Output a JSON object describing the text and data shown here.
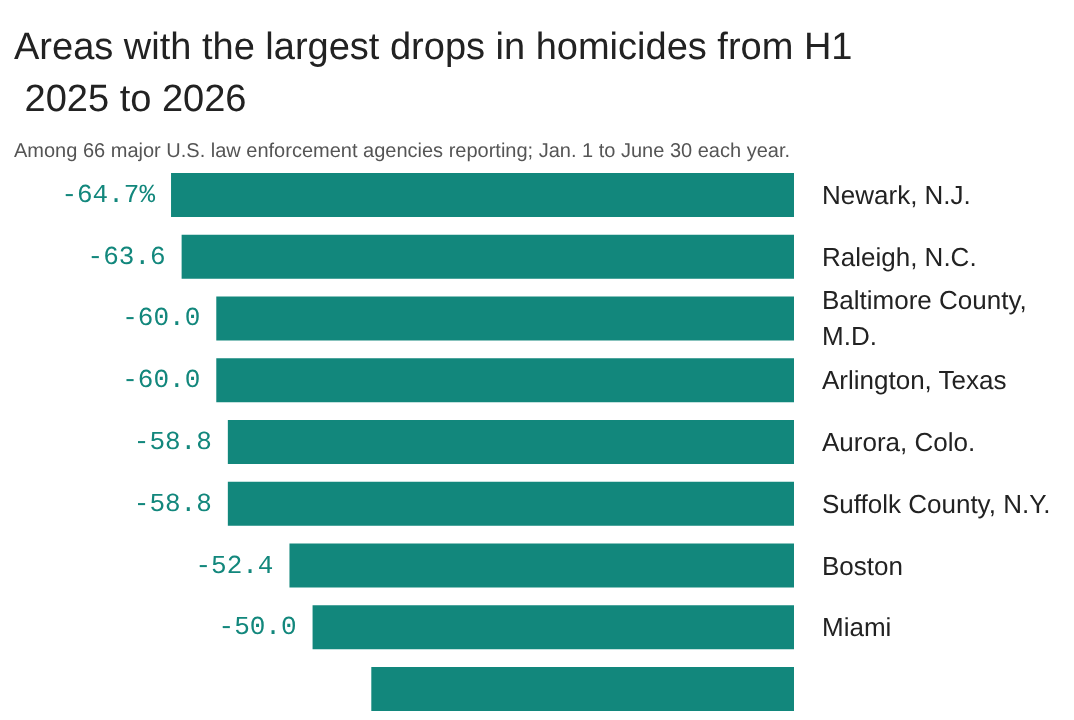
{
  "chart_data": {
    "type": "bar",
    "orientation": "horizontal",
    "title": "Areas with the largest drops in homicides from H1 2025 to 2026",
    "subtitle": "Among 66 major U.S. law enforcement agencies reporting; Jan. 1 to June 30 each year.",
    "categories": [
      "Newark, N.J.",
      "Raleigh, N.C.",
      "Baltimore County, M.D.",
      "Arlington, Texas",
      "Aurora, Colo.",
      "Suffolk County, N.Y.",
      "Boston",
      "Miami",
      null
    ],
    "values": [
      -64.7,
      -63.6,
      -60.0,
      -60.0,
      -58.8,
      -58.8,
      -52.4,
      -50.0,
      -43.9
    ],
    "value_labels": [
      "-64.7%",
      "-63.6",
      "-60.0",
      "-60.0",
      "-58.8",
      "-58.8",
      "-52.4",
      "-50.0",
      null
    ],
    "color": "#12877c"
  }
}
